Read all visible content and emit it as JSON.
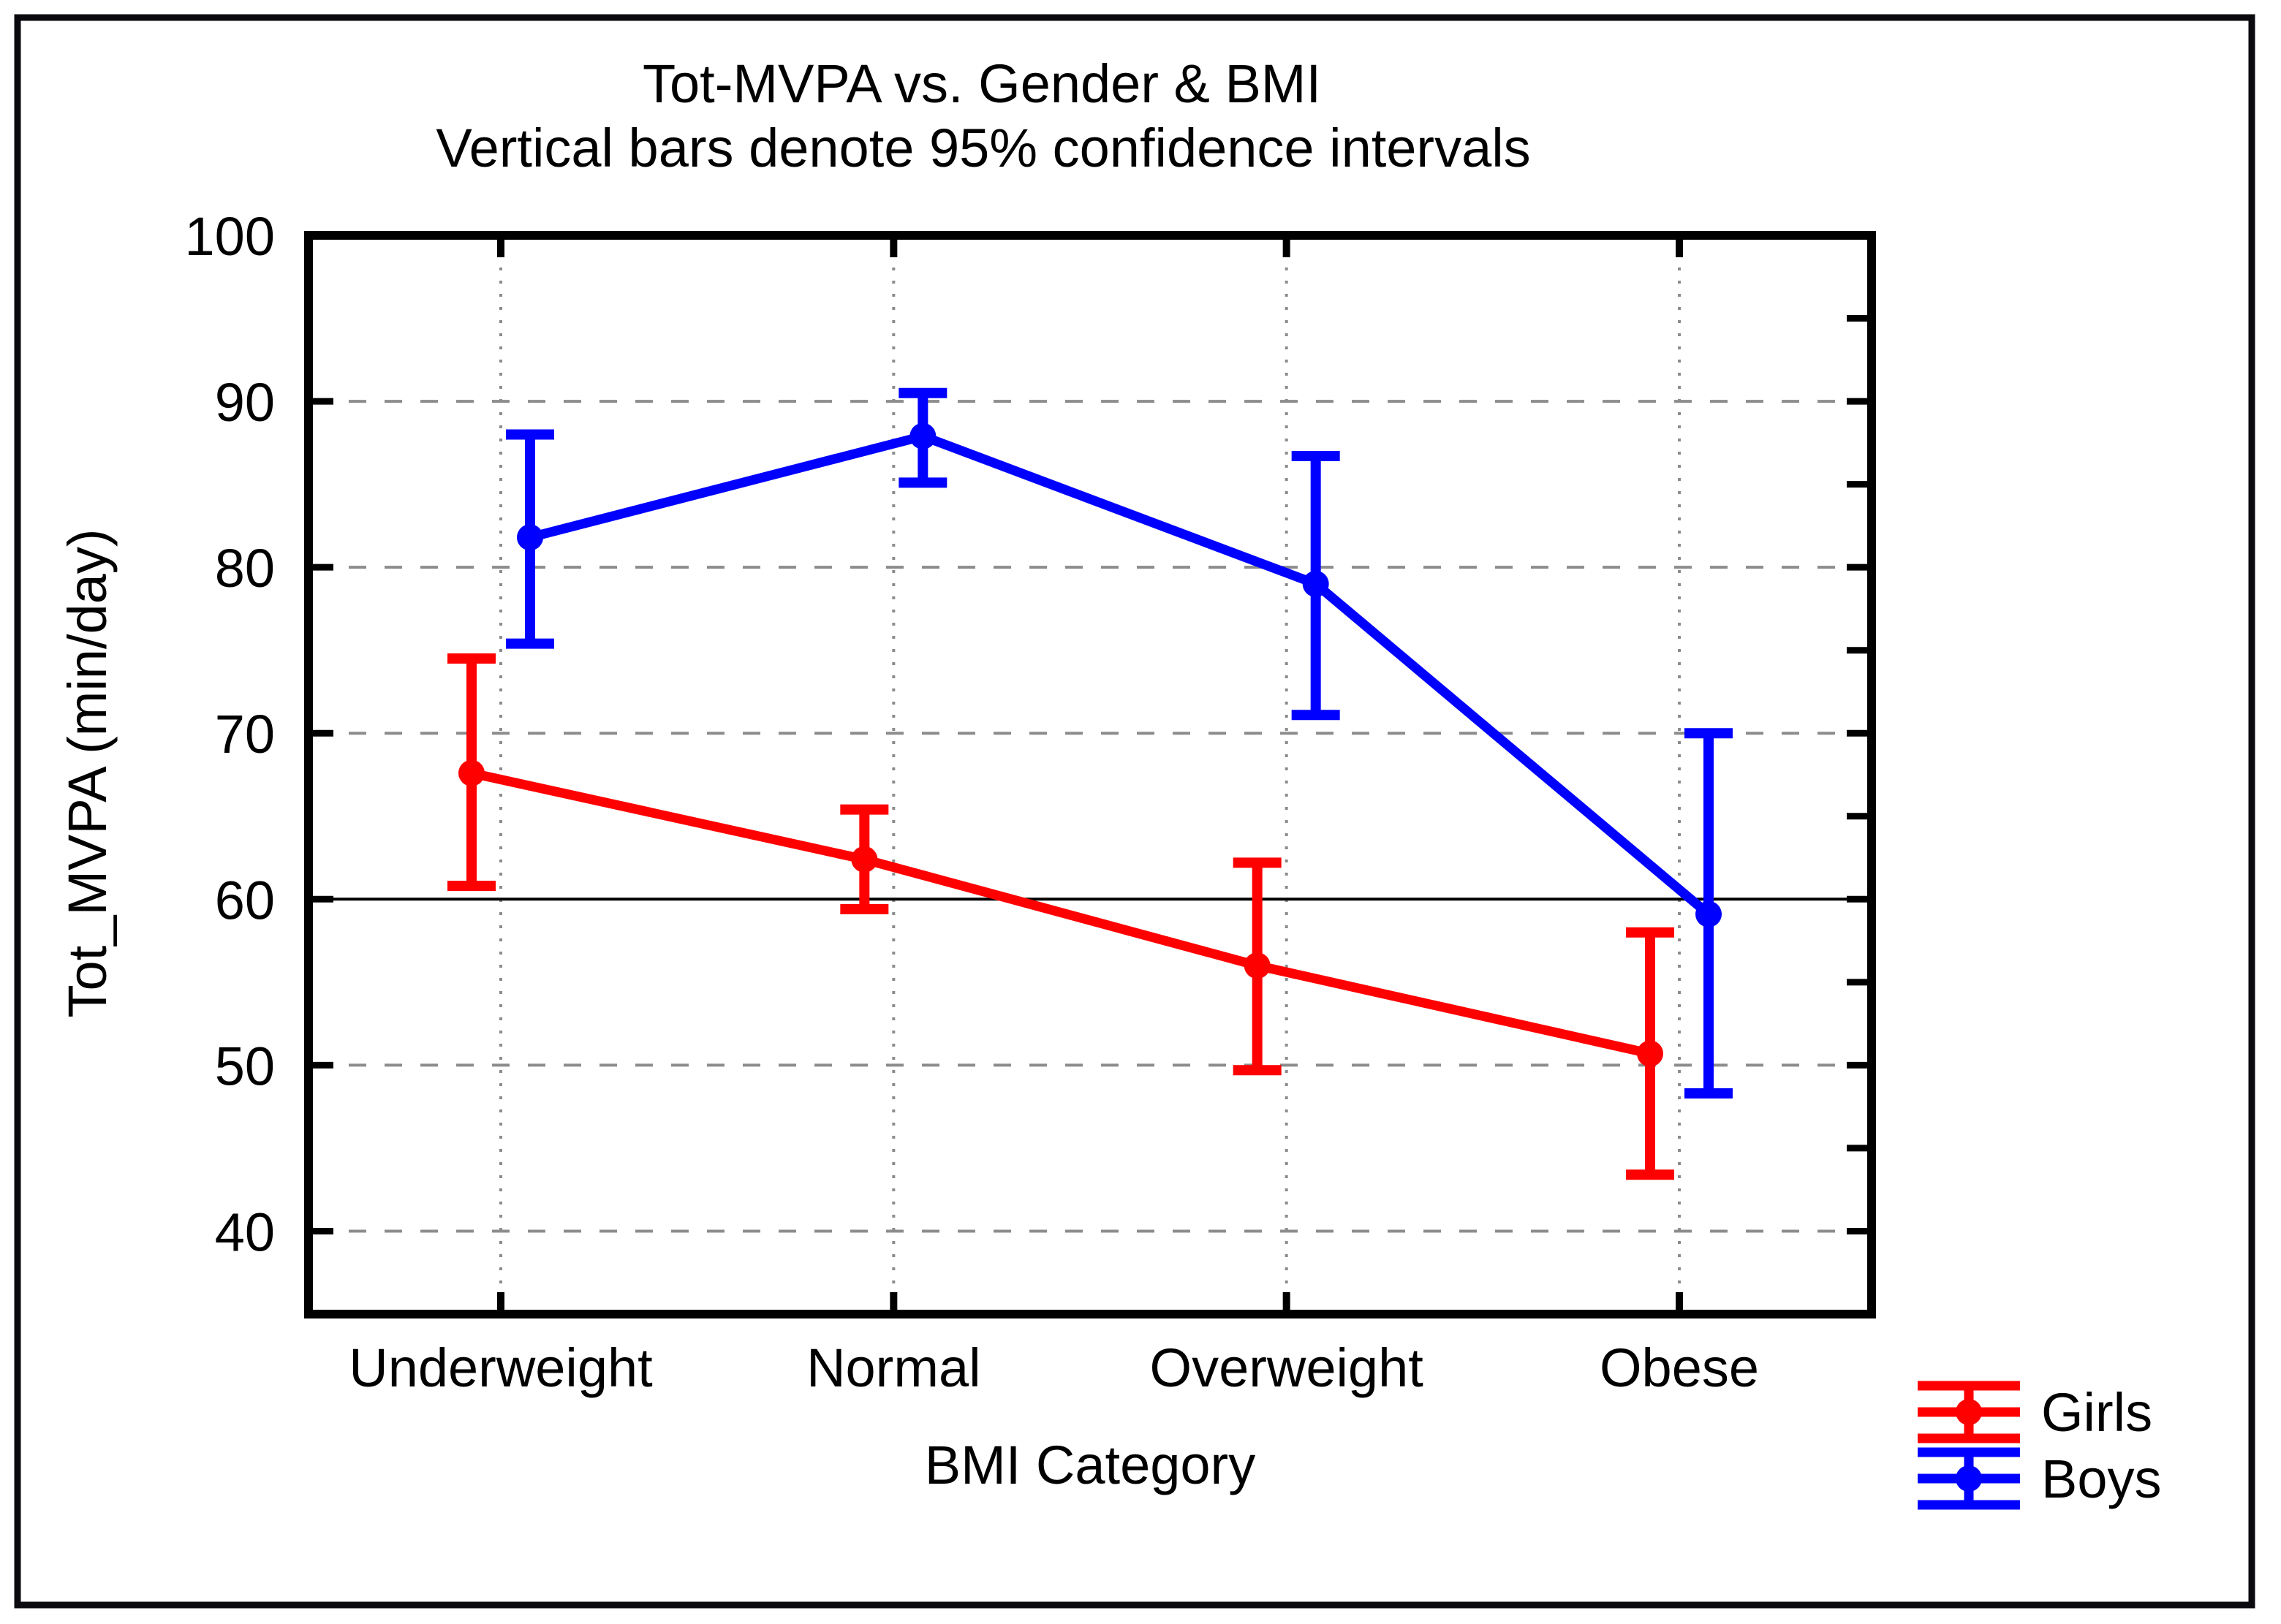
{
  "chart_data": {
    "type": "line",
    "title": "Tot-MVPA vs. Gender & BMI",
    "subtitle": "Vertical bars denote 95% confidence intervals",
    "xlabel": "BMI Category",
    "ylabel": "Tot_MVPA (min/day)",
    "categories": [
      "Underweight",
      "Normal",
      "Overweight",
      "Obese"
    ],
    "series": [
      {
        "name": "Girls",
        "color": "#ff0000",
        "means": [
          67.6,
          62.4,
          56.0,
          50.7
        ],
        "ci_low": [
          60.8,
          59.4,
          49.7,
          43.4
        ],
        "ci_high": [
          74.5,
          65.4,
          62.2,
          58.0
        ]
      },
      {
        "name": "Boys",
        "color": "#0000ff",
        "means": [
          81.8,
          87.9,
          79.0,
          59.1
        ],
        "ci_low": [
          75.4,
          85.1,
          71.1,
          48.3
        ],
        "ci_high": [
          88.0,
          90.5,
          86.7,
          70.0
        ]
      }
    ],
    "y_ticks": [
      100,
      90,
      80,
      70,
      60,
      50,
      40
    ],
    "y_minor_tick_step": 5,
    "ylim": [
      35,
      100
    ],
    "reference_line_y": 60,
    "grid": {
      "horizontal": "dashed-major",
      "vertical": "dotted-at-categories"
    },
    "legend": {
      "position": "bottom-right",
      "entries": [
        "Girls",
        "Boys"
      ]
    },
    "axis_color": "#000000",
    "gridline_color": "#8c8c8c"
  }
}
